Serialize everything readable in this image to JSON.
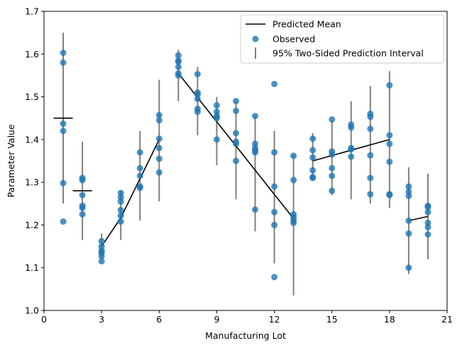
{
  "chart_data": {
    "type": "scatter",
    "title": "",
    "xlabel": "Manufacturing Lot",
    "ylabel": "Parameter Value",
    "xlim": [
      0,
      21
    ],
    "ylim": [
      1.0,
      1.7
    ],
    "xticks": [
      0,
      3,
      6,
      9,
      12,
      15,
      18,
      21
    ],
    "yticks": [
      1.0,
      1.1,
      1.2,
      1.3,
      1.4,
      1.5,
      1.6,
      1.7
    ],
    "grid": false,
    "legend_placement": "top-right",
    "colors": {
      "observed": "#1f77b4",
      "interval": "#808080",
      "mean": "#000000"
    },
    "legend": [
      {
        "key": "mean",
        "label": "Predicted Mean"
      },
      {
        "key": "observed",
        "label": "Observed"
      },
      {
        "key": "interval",
        "label": "95% Two-Sided Prediction Interval"
      }
    ],
    "predicted_mean_segments": [
      {
        "lots": [
          1
        ],
        "y": [
          1.45
        ]
      },
      {
        "lots": [
          2
        ],
        "y": [
          1.28
        ]
      },
      {
        "lots": [
          3,
          4,
          5,
          6
        ],
        "y": [
          1.15,
          1.2167,
          1.3083,
          1.4
        ]
      },
      {
        "lots": [
          7,
          8,
          9,
          10,
          11,
          12,
          13
        ],
        "y": [
          1.555,
          1.4983,
          1.4417,
          1.385,
          1.3283,
          1.2717,
          1.215
        ]
      },
      {
        "lots": [
          14,
          15,
          16,
          17,
          18
        ],
        "y": [
          1.35,
          1.3625,
          1.375,
          1.3875,
          1.4
        ]
      },
      {
        "lots": [
          19,
          20
        ],
        "y": [
          1.21,
          1.22
        ]
      }
    ],
    "prediction_intervals": [
      {
        "lot": 1,
        "low": 1.25,
        "high": 1.65
      },
      {
        "lot": 2,
        "low": 1.165,
        "high": 1.395
      },
      {
        "lot": 3,
        "low": 1.12,
        "high": 1.18
      },
      {
        "lot": 4,
        "low": 1.165,
        "high": 1.28
      },
      {
        "lot": 5,
        "low": 1.21,
        "high": 1.42
      },
      {
        "lot": 6,
        "low": 1.255,
        "high": 1.54
      },
      {
        "lot": 7,
        "low": 1.49,
        "high": 1.61
      },
      {
        "lot": 8,
        "low": 1.41,
        "high": 1.57
      },
      {
        "lot": 9,
        "low": 1.34,
        "high": 1.5
      },
      {
        "lot": 10,
        "low": 1.26,
        "high": 1.49
      },
      {
        "lot": 11,
        "low": 1.185,
        "high": 1.455
      },
      {
        "lot": 12,
        "low": 1.11,
        "high": 1.42
      },
      {
        "lot": 13,
        "low": 1.035,
        "high": 1.365
      },
      {
        "lot": 14,
        "low": 1.305,
        "high": 1.415
      },
      {
        "lot": 15,
        "low": 1.27,
        "high": 1.445
      },
      {
        "lot": 16,
        "low": 1.26,
        "high": 1.49
      },
      {
        "lot": 17,
        "low": 1.25,
        "high": 1.525
      },
      {
        "lot": 18,
        "low": 1.24,
        "high": 1.56
      },
      {
        "lot": 19,
        "low": 1.085,
        "high": 1.335
      },
      {
        "lot": 20,
        "low": 1.12,
        "high": 1.32
      }
    ],
    "observed": [
      {
        "lot": 1,
        "values": [
          1.603,
          1.58,
          1.437,
          1.42,
          1.298,
          1.208
        ]
      },
      {
        "lot": 2,
        "values": [
          1.31,
          1.305,
          1.27,
          1.245,
          1.24,
          1.225
        ]
      },
      {
        "lot": 3,
        "values": [
          1.162,
          1.15,
          1.14,
          1.135,
          1.127,
          1.115
        ]
      },
      {
        "lot": 4,
        "values": [
          1.275,
          1.265,
          1.255,
          1.235,
          1.222,
          1.208
        ]
      },
      {
        "lot": 5,
        "values": [
          1.37,
          1.333,
          1.315,
          1.29,
          1.287
        ]
      },
      {
        "lot": 6,
        "values": [
          1.457,
          1.445,
          1.402,
          1.38,
          1.355,
          1.323
        ]
      },
      {
        "lot": 7,
        "values": [
          1.597,
          1.585,
          1.582,
          1.57,
          1.555,
          1.55
        ]
      },
      {
        "lot": 8,
        "values": [
          1.553,
          1.51,
          1.505,
          1.495,
          1.472,
          1.465
        ]
      },
      {
        "lot": 9,
        "values": [
          1.48,
          1.465,
          1.455,
          1.45,
          1.4
        ]
      },
      {
        "lot": 10,
        "values": [
          1.49,
          1.467,
          1.415,
          1.395,
          1.39,
          1.35
        ]
      },
      {
        "lot": 11,
        "values": [
          1.455,
          1.39,
          1.38,
          1.375,
          1.37,
          1.236
        ]
      },
      {
        "lot": 12,
        "values": [
          1.53,
          1.37,
          1.29,
          1.23,
          1.2,
          1.078
        ]
      },
      {
        "lot": 13,
        "values": [
          1.362,
          1.305,
          1.225,
          1.218,
          1.21,
          1.205
        ]
      },
      {
        "lot": 14,
        "values": [
          1.402,
          1.375,
          1.358,
          1.328,
          1.312,
          1.31
        ]
      },
      {
        "lot": 15,
        "values": [
          1.447,
          1.372,
          1.365,
          1.333,
          1.315,
          1.28
        ]
      },
      {
        "lot": 16,
        "values": [
          1.435,
          1.428,
          1.38,
          1.377,
          1.36
        ]
      },
      {
        "lot": 17,
        "values": [
          1.46,
          1.453,
          1.425,
          1.363,
          1.31,
          1.272
        ]
      },
      {
        "lot": 18,
        "values": [
          1.527,
          1.41,
          1.39,
          1.348,
          1.272,
          1.27
        ]
      },
      {
        "lot": 19,
        "values": [
          1.29,
          1.278,
          1.268,
          1.21,
          1.18,
          1.1
        ]
      },
      {
        "lot": 20,
        "values": [
          1.245,
          1.242,
          1.23,
          1.205,
          1.195,
          1.178
        ]
      }
    ]
  }
}
